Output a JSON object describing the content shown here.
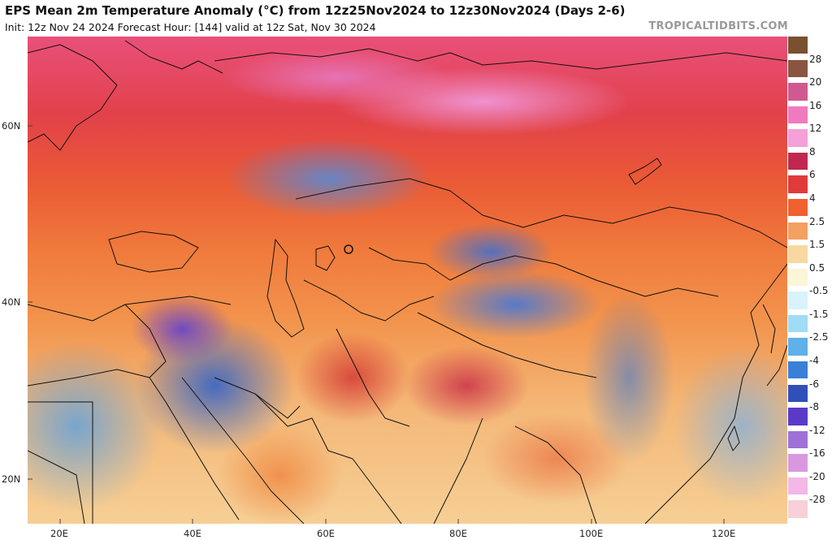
{
  "header": {
    "title": "EPS Mean 2m Temperature Anomaly (°C) from 12z25Nov2024 to 12z30Nov2024 (Days 2-6)",
    "subtitle": "Init: 12z Nov 24 2024   Forecast Hour: [144]   valid at 12z Sat, Nov 30 2024",
    "credit": "TROPICALTIDBITS.COM"
  },
  "map": {
    "lat_labels": [
      "60N",
      "40N",
      "20N"
    ],
    "lon_labels": [
      "20E",
      "40E",
      "60E",
      "80E",
      "100E",
      "120E"
    ]
  },
  "colorbar": {
    "labels": [
      "28",
      "20",
      "16",
      "12",
      "8",
      "6",
      "4",
      "2.5",
      "1.5",
      "0.5",
      "-0.5",
      "-1.5",
      "-2.5",
      "-4",
      "-6",
      "-8",
      "-12",
      "-16",
      "-20",
      "-28"
    ],
    "colors": [
      "#7a5030",
      "#8a5540",
      "#d05a90",
      "#f07ac0",
      "#f5a0d8",
      "#c02850",
      "#e03a3a",
      "#f06030",
      "#f4a060",
      "#f8d8a0",
      "#fdf5d8",
      "#d8f3fb",
      "#a0dcf5",
      "#60b0ea",
      "#3a80d8",
      "#3050b8",
      "#5a3ac8",
      "#a070d8",
      "#d898e0",
      "#f3b8e8",
      "#f8d0d8"
    ]
  }
}
